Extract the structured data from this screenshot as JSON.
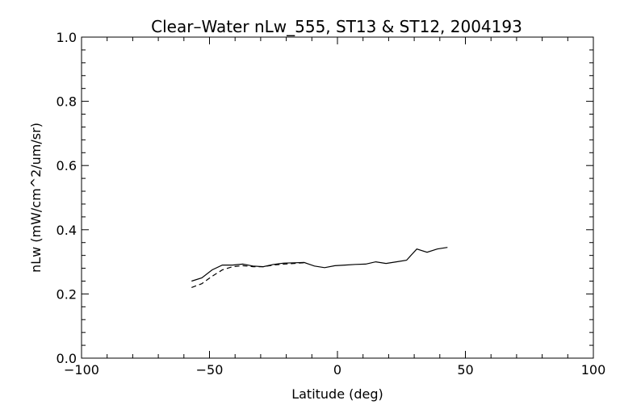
{
  "chart_data": {
    "type": "line",
    "title": "Clear–Water nLw_555, ST13 & ST12, 2004193",
    "xlabel": "Latitude (deg)",
    "ylabel": "nLw (mW/cm^2/um/sr)",
    "xlim": [
      -100,
      100
    ],
    "ylim": [
      0.0,
      1.0
    ],
    "x_ticks": [
      "−100",
      "−50",
      "0",
      "50",
      "100"
    ],
    "y_ticks": [
      "0.0",
      "0.2",
      "0.4",
      "0.6",
      "0.8",
      "1.0"
    ],
    "grid": false,
    "series": [
      {
        "style": "solid",
        "x": [
          -57,
          -53,
          -49,
          -45,
          -41,
          -37,
          -33,
          -29,
          -25,
          -21,
          -17,
          -13,
          -9,
          -5,
          -1,
          3,
          7,
          11,
          15,
          19,
          23,
          27,
          31,
          35,
          39,
          43
        ],
        "y": [
          0.24,
          0.25,
          0.275,
          0.29,
          0.29,
          0.293,
          0.287,
          0.285,
          0.292,
          0.296,
          0.297,
          0.298,
          0.287,
          0.282,
          0.288,
          0.29,
          0.292,
          0.293,
          0.3,
          0.295,
          0.3,
          0.305,
          0.34,
          0.33,
          0.34,
          0.345
        ]
      },
      {
        "style": "dashed",
        "x": [
          -57,
          -53,
          -49,
          -45,
          -41,
          -37,
          -33,
          -29,
          -25,
          -21,
          -17,
          -13
        ],
        "y": [
          0.22,
          0.232,
          0.255,
          0.275,
          0.285,
          0.288,
          0.285,
          0.285,
          0.29,
          0.293,
          0.295,
          0.297
        ]
      }
    ]
  }
}
